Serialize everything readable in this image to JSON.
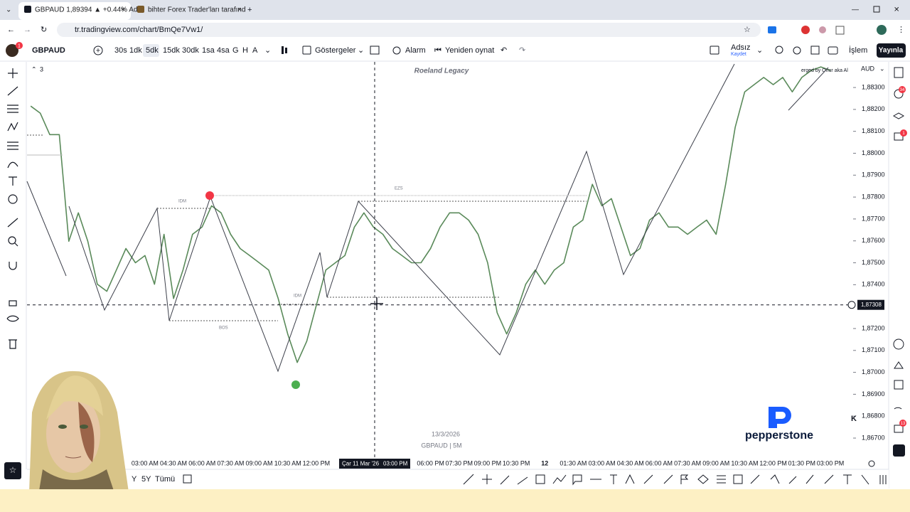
{
  "browser": {
    "tabs": [
      "GBPAUD 1,89394 ▲ +0.44% Ad",
      "bihter Forex Trader'ları tarafınd"
    ],
    "url": "tr.tradingview.com/chart/BmQe7Vw1/"
  },
  "toolbar": {
    "symbol": "GBPAUD",
    "intervals": [
      "30s",
      "1dk",
      "5dk",
      "15dk",
      "30dk",
      "1sa",
      "4sa",
      "G",
      "H",
      "A"
    ],
    "indicators": "Göstergeler",
    "alarm": "Alarm",
    "replay": "Yeniden oynat",
    "layout_name": "Adsız",
    "save": "Kaydet",
    "trade": "İşlem",
    "publish": "Yayınla",
    "notification_count": "1"
  },
  "chart_data": {
    "type": "line",
    "title": "Roeland Legacy",
    "legend_count": "3",
    "currency": "AUD",
    "watermark_date": "13/3/2026",
    "watermark_symbol": "GBPAUD | 5M",
    "script_credit": "erged by Onur aka Al",
    "annotations": [
      "IDM",
      "BOS",
      "EZS",
      "IDM"
    ],
    "categories": [
      null,
      null,
      null,
      null,
      null,
      null,
      null,
      null,
      null,
      null,
      null,
      null,
      "03:00 AM",
      null,
      null,
      "04:30 AM",
      null,
      null,
      "06:00 AM",
      null,
      null,
      "07:30 AM",
      null,
      null,
      "09:00 AM",
      null,
      null,
      "10:30 AM",
      null,
      null,
      "12:00 PM",
      null,
      null,
      null,
      null,
      null,
      null,
      null,
      null,
      null,
      null,
      null,
      "06:00 PM",
      null,
      null,
      "07:30 PM",
      null,
      null,
      "09:00 PM",
      null,
      null,
      "10:30 PM",
      null,
      null,
      "12",
      null,
      null,
      "01:30 AM",
      null,
      null,
      "03:00 AM",
      null,
      null,
      "04:30 AM",
      null,
      null,
      "06:00 AM",
      null,
      null,
      "07:30 AM",
      null,
      null,
      "09:00 AM",
      null,
      null,
      "10:30 AM",
      null,
      null,
      "12:00 PM",
      null,
      null,
      "01:30 PM",
      null,
      null,
      "03:00 PM"
    ],
    "series": [
      {
        "name": "GBPAUD",
        "color": "#5a8a5a",
        "values": [
          1.88215,
          1.88183,
          1.88085,
          1.88085,
          1.87598,
          1.87728,
          1.87598,
          1.87402,
          1.8737,
          1.87467,
          1.87565,
          1.875,
          1.87533,
          1.87402,
          1.8763,
          1.87337,
          1.87467,
          1.8763,
          1.87663,
          1.8776,
          1.87728,
          1.8763,
          1.87565,
          1.87533,
          1.875,
          1.87467,
          1.87337,
          1.87175,
          1.87045,
          1.87142,
          1.87305,
          1.87467,
          1.875,
          1.87533,
          1.87663,
          1.87728,
          1.87663,
          1.8763,
          1.87565,
          1.87533,
          1.875,
          1.875,
          1.87565,
          1.87663,
          1.87728,
          1.87728,
          1.87695,
          1.8763,
          1.875,
          1.87272,
          1.87175,
          1.87272,
          1.87402,
          1.87467,
          1.87402,
          1.87467,
          1.875,
          1.87663,
          1.87695,
          1.87858,
          1.8776,
          1.87793,
          1.87663,
          1.87533,
          1.87565,
          1.87695,
          1.87728,
          1.87663,
          1.87663,
          1.8763,
          1.87663,
          1.87695,
          1.8763,
          1.87858,
          1.88118,
          1.8828,
          1.88313,
          1.88346,
          1.88313,
          1.88346,
          1.8828,
          1.88346,
          1.88378,
          1.88394,
          1.88378
        ]
      }
    ],
    "ylim": [
      1.86606,
      1.88417
    ],
    "yticks": [
      {
        "value": 1.883,
        "label": "1,88300"
      },
      {
        "value": 1.882,
        "label": "1,88200"
      },
      {
        "value": 1.881,
        "label": "1,88100"
      },
      {
        "value": 1.88,
        "label": "1,88000"
      },
      {
        "value": 1.879,
        "label": "1,87900"
      },
      {
        "value": 1.878,
        "label": "1,87800"
      },
      {
        "value": 1.877,
        "label": "1,87700"
      },
      {
        "value": 1.876,
        "label": "1,87600"
      },
      {
        "value": 1.875,
        "label": "1,87500"
      },
      {
        "value": 1.874,
        "label": "1,87400"
      },
      {
        "value": 1.872,
        "label": "1,87200"
      },
      {
        "value": 1.871,
        "label": "1,87100"
      },
      {
        "value": 1.87,
        "label": "1,87000"
      },
      {
        "value": 1.869,
        "label": "1,86900"
      },
      {
        "value": 1.868,
        "label": "1,86800"
      },
      {
        "value": 1.867,
        "label": "1,86700"
      }
    ],
    "crosshair_price": {
      "value": 1.87308,
      "label": "1,87308"
    },
    "crosshair_date": "Çar 11 Mar '26",
    "crosshair_time": "03:00 PM",
    "grid": false
  },
  "bottom_bar": {
    "ranges": [
      "Y",
      "5Y",
      "Tümü"
    ]
  },
  "sidebar": {
    "badges": [
      "34",
      "1",
      "13"
    ]
  },
  "broker": "pepperstone",
  "edge_letter": "K"
}
